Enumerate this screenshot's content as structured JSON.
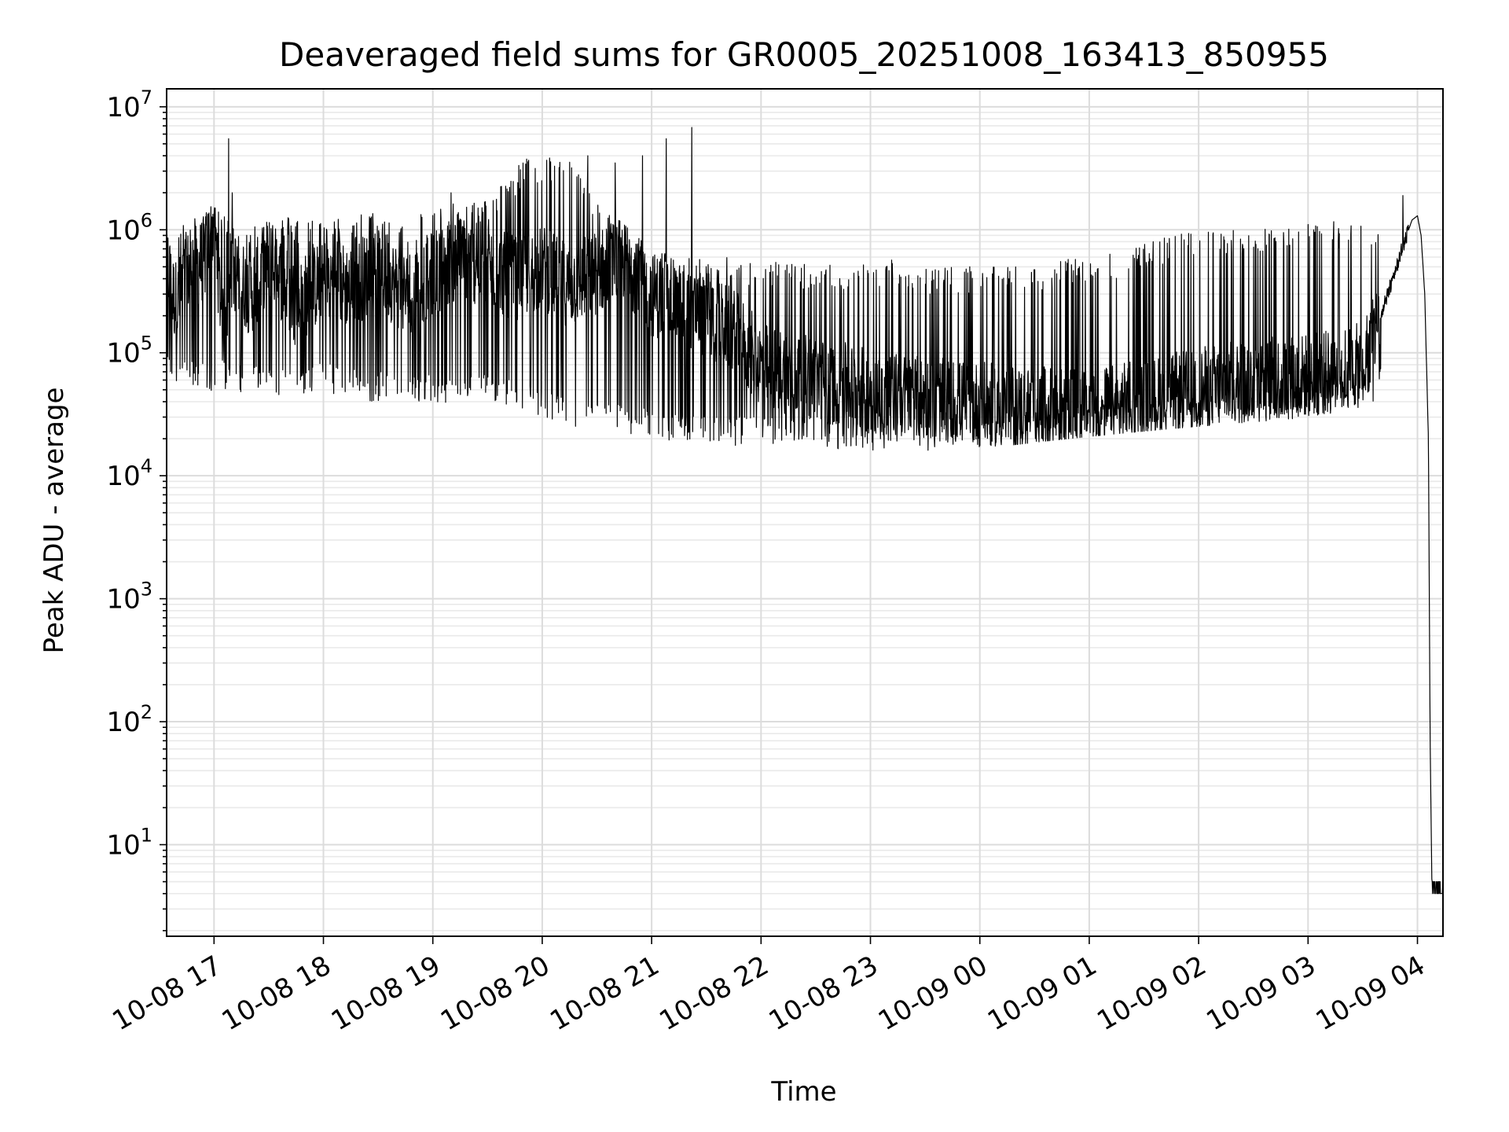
{
  "chart_data": {
    "type": "line",
    "title": "Deaveraged field sums for GR0005_20251008_163413_850955",
    "xlabel": "Time",
    "ylabel": "Peak ADU - average",
    "yscale": "log",
    "ylim": [
      1.8,
      14000000
    ],
    "xlim": [
      "2025-10-08 16:34",
      "2025-10-09 04:14"
    ],
    "grid": true,
    "x_tick_labels": [
      "10-08 17",
      "10-08 18",
      "10-08 19",
      "10-08 20",
      "10-08 21",
      "10-08 22",
      "10-08 23",
      "10-09 00",
      "10-09 01",
      "10-09 02",
      "10-09 03",
      "10-09 04"
    ],
    "y_tick_labels": [
      {
        "base": "10",
        "exp": "1",
        "value": 10
      },
      {
        "base": "10",
        "exp": "2",
        "value": 100
      },
      {
        "base": "10",
        "exp": "3",
        "value": 1000
      },
      {
        "base": "10",
        "exp": "4",
        "value": 10000
      },
      {
        "base": "10",
        "exp": "5",
        "value": 100000
      },
      {
        "base": "10",
        "exp": "6",
        "value": 1000000
      },
      {
        "base": "10",
        "exp": "7",
        "value": 10000000
      }
    ],
    "series": [
      {
        "color": "#000000",
        "x": [
          "2025-10-08 16:34",
          "2025-10-08 16:37",
          "2025-10-08 16:40",
          "2025-10-08 16:45",
          "2025-10-08 16:50",
          "2025-10-08 16:55",
          "2025-10-08 17:00",
          "2025-10-08 17:05",
          "2025-10-08 17:10",
          "2025-10-08 17:20",
          "2025-10-08 17:30",
          "2025-10-08 17:45",
          "2025-10-08 18:00",
          "2025-10-08 18:15",
          "2025-10-08 18:30",
          "2025-10-08 18:45",
          "2025-10-08 19:00",
          "2025-10-08 19:15",
          "2025-10-08 19:30",
          "2025-10-08 19:45",
          "2025-10-08 20:00",
          "2025-10-08 20:15",
          "2025-10-08 20:30",
          "2025-10-08 20:45",
          "2025-10-08 21:00",
          "2025-10-08 21:15",
          "2025-10-08 21:30",
          "2025-10-08 21:45",
          "2025-10-08 22:00",
          "2025-10-08 22:15",
          "2025-10-08 22:30",
          "2025-10-08 22:45",
          "2025-10-08 23:00",
          "2025-10-08 23:15",
          "2025-10-08 23:30",
          "2025-10-08 23:45",
          "2025-10-09 00:00",
          "2025-10-09 00:15",
          "2025-10-09 00:30",
          "2025-10-09 00:45",
          "2025-10-09 01:00",
          "2025-10-09 01:15",
          "2025-10-09 01:30",
          "2025-10-09 01:45",
          "2025-10-09 02:00",
          "2025-10-09 02:15",
          "2025-10-09 02:30",
          "2025-10-09 02:45",
          "2025-10-09 03:00",
          "2025-10-09 03:15",
          "2025-10-09 03:30",
          "2025-10-09 03:40",
          "2025-10-09 03:50",
          "2025-10-09 03:57",
          "2025-10-09 04:00",
          "2025-10-09 04:02",
          "2025-10-09 04:04",
          "2025-10-09 04:06",
          "2025-10-09 04:07",
          "2025-10-09 04:08",
          "2025-10-09 04:09",
          "2025-10-09 04:14"
        ],
        "y": [
          600000,
          300000,
          250000,
          450000,
          500000,
          600000,
          1200000,
          150000,
          500000,
          300000,
          600000,
          250000,
          400000,
          350000,
          500000,
          300000,
          450000,
          600000,
          500000,
          400000,
          500000,
          350000,
          450000,
          600000,
          300000,
          250000,
          200000,
          150000,
          80000,
          70000,
          60000,
          55000,
          50000,
          45000,
          42000,
          40000,
          38000,
          36000,
          35000,
          34000,
          35000,
          37000,
          40000,
          45000,
          50000,
          55000,
          60000,
          62000,
          65000,
          70000,
          80000,
          200000,
          600000,
          1200000,
          1300000,
          900000,
          300000,
          20000,
          60,
          4,
          4,
          4
        ],
        "upper_envelope": [
          900000,
          1500000,
          1200000,
          1300000,
          1200000,
          1400000,
          1300000,
          1600000,
          1800000,
          4000000,
          4000000,
          1400000,
          700000,
          600000,
          600000,
          550000,
          550000,
          500000,
          600000,
          500000,
          500000,
          500000,
          550000,
          600000,
          700000,
          900000,
          1000000,
          1000000,
          1100000,
          1200000,
          1100000,
          1000000
        ],
        "lower_envelope": [
          70000,
          60000,
          60000,
          55000,
          60000,
          50000,
          50000,
          45000,
          50000,
          40000,
          30000,
          28000,
          25000,
          22000,
          22000,
          22000,
          21000,
          20000,
          20000,
          20000,
          21000,
          22000,
          24000,
          26000,
          28000,
          30000,
          32000,
          34000,
          36000,
          40000,
          45000,
          100000
        ]
      }
    ],
    "spikes": [
      {
        "x": "2025-10-08 17:08",
        "y": 5500000
      },
      {
        "x": "2025-10-08 17:10",
        "y": 2000000
      },
      {
        "x": "2025-10-08 17:20",
        "y": 900000
      },
      {
        "x": "2025-10-08 19:10",
        "y": 2000000
      },
      {
        "x": "2025-10-08 20:05",
        "y": 2500000
      },
      {
        "x": "2025-10-08 20:25",
        "y": 4000000
      },
      {
        "x": "2025-10-08 20:40",
        "y": 3500000
      },
      {
        "x": "2025-10-08 20:55",
        "y": 4000000
      },
      {
        "x": "2025-10-08 21:08",
        "y": 5500000
      },
      {
        "x": "2025-10-08 21:22",
        "y": 6800000
      },
      {
        "x": "2025-10-09 03:52",
        "y": 1900000
      }
    ]
  }
}
